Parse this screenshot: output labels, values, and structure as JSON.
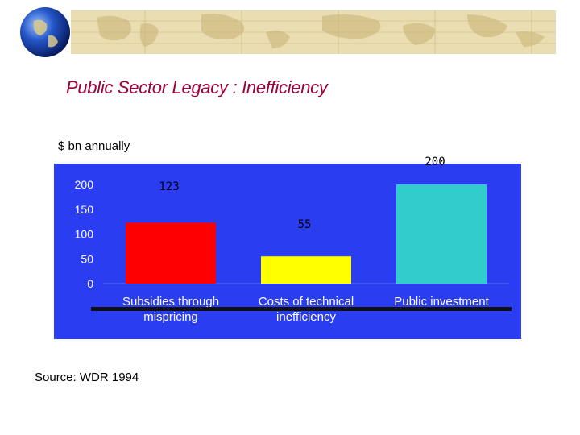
{
  "slide": {
    "title": "Public Sector Legacy : Inefficiency",
    "unit_label": "$ bn annually",
    "source": "Source: WDR 1994"
  },
  "colors": {
    "title": "#a0003a",
    "chart_background": "#2a3df0",
    "banner": "#e9ddb1",
    "bars": [
      "#ff0000",
      "#ffff00",
      "#33cccc"
    ]
  },
  "chart_data": {
    "type": "bar",
    "title": "Public Sector Legacy : Inefficiency",
    "ylabel": "$ bn annually",
    "xlabel": "",
    "categories": [
      "Subsidies through mispricing",
      "Costs of technical inefficiency",
      "Public investment"
    ],
    "category_lines": [
      [
        "Subsidies through",
        "mispricing"
      ],
      [
        "Costs of technical",
        "inefficiency"
      ],
      [
        "Public investment"
      ]
    ],
    "values": [
      123,
      55,
      200
    ],
    "value_labels": [
      "123",
      "55",
      "200"
    ],
    "yticks": [
      0,
      50,
      100,
      150,
      200
    ],
    "ylim": [
      0,
      200
    ],
    "grid": false,
    "legend": "none"
  }
}
